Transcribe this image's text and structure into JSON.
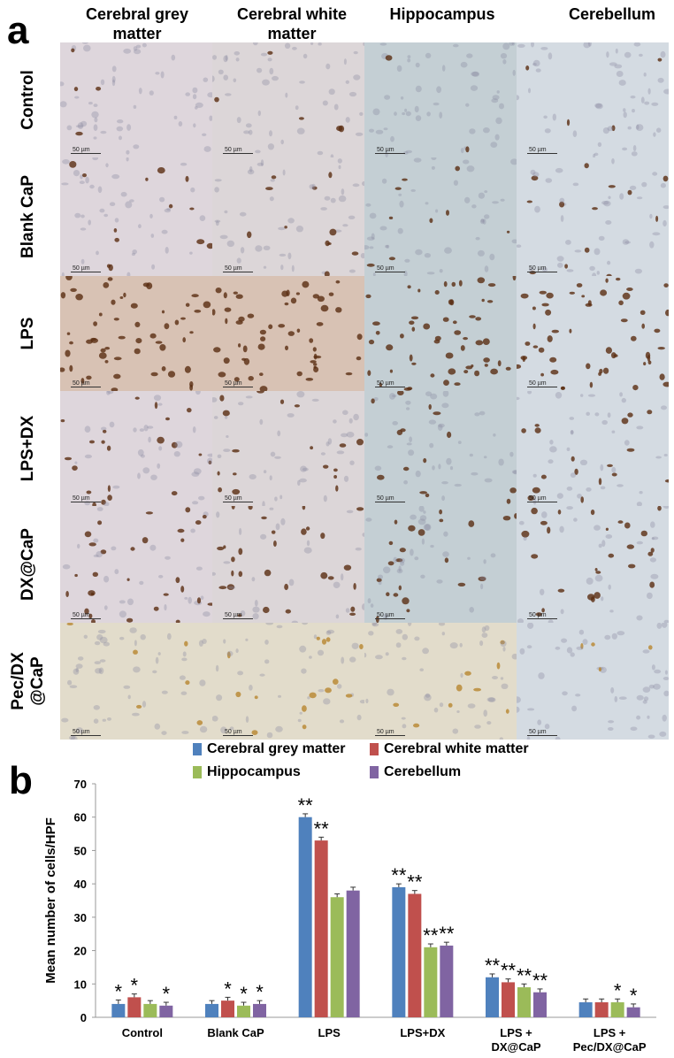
{
  "panel_a": {
    "letter": "a",
    "columns": [
      "Cerebral  grey matter",
      "Cerebral white matter",
      "Hippocampus",
      "Cerebellum"
    ],
    "rows": [
      "Control",
      "Blank CaP",
      "LPS",
      "LPS+DX",
      "DX@CaP",
      "Pec/DX\n@CaP"
    ],
    "scale_label": "50 µm",
    "row_intensity": [
      0.05,
      0.2,
      1.0,
      0.35,
      0.45,
      0.15
    ],
    "tile_colors": {
      "grey": "#ded6dc",
      "white": "#dcd6d8",
      "hippo": "#c4cfd4",
      "cereb": "#d4dbe2",
      "stain": "#5a2d12"
    }
  },
  "panel_b": {
    "letter": "b",
    "significance_marks": {
      "single": "*",
      "double": "**"
    }
  },
  "chart_data": {
    "type": "bar",
    "categories": [
      "Control",
      "Blank CaP",
      "LPS",
      "LPS+DX",
      "LPS +\nDX@CaP",
      "LPS +\nPec/DX@CaP"
    ],
    "ylabel": "Mean number of cells/HPF",
    "ylim": [
      0,
      70
    ],
    "yticks": [
      0,
      10,
      20,
      30,
      40,
      50,
      60,
      70
    ],
    "legend_position": "top",
    "series": [
      {
        "name": "Cerebral grey matter",
        "color": "#4f81bd",
        "values": [
          4,
          4,
          60,
          39,
          12,
          4.5
        ],
        "errors": [
          1.2,
          1,
          1,
          1,
          1,
          1
        ],
        "marks": [
          "*",
          "",
          "**",
          "**",
          "**",
          ""
        ]
      },
      {
        "name": "Cerebral white matter",
        "color": "#c0504d",
        "values": [
          6,
          5,
          53,
          37,
          10.5,
          4.5
        ],
        "errors": [
          1,
          1,
          1,
          1,
          1,
          1
        ],
        "marks": [
          "*",
          "*",
          "**",
          "**",
          "**",
          ""
        ]
      },
      {
        "name": "Hippocampus",
        "color": "#9bbb59",
        "values": [
          4,
          3.5,
          36,
          21,
          9,
          4.5
        ],
        "errors": [
          1,
          1,
          1,
          1,
          1,
          1
        ],
        "marks": [
          "",
          "*",
          "",
          "**",
          "**",
          "*"
        ]
      },
      {
        "name": "Cerebellum",
        "color": "#8064a2",
        "values": [
          3.5,
          4,
          38,
          21.5,
          7.5,
          3
        ],
        "errors": [
          1,
          1,
          1,
          1,
          1,
          1
        ],
        "marks": [
          "*",
          "*",
          "",
          "**",
          "**",
          "*"
        ]
      }
    ]
  }
}
